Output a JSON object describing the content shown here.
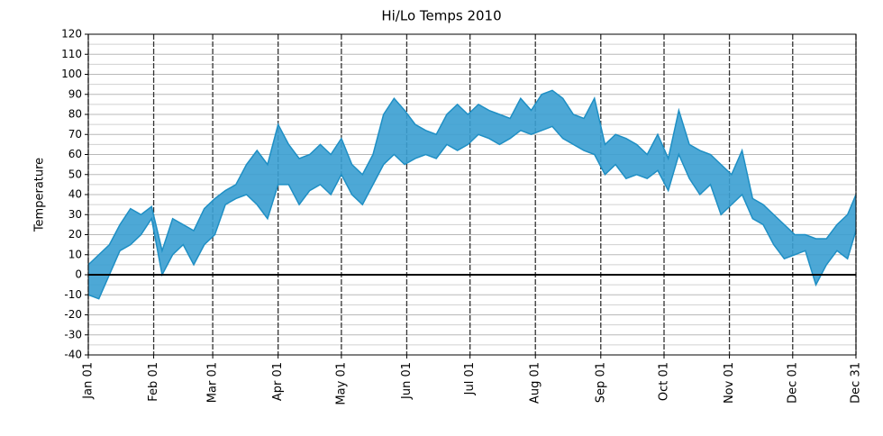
{
  "chart_data": {
    "type": "fill_between",
    "title": "Hi/Lo Temps 2010",
    "ylabel": "Temperature",
    "x": [
      "Jan 01",
      "Jan 06",
      "Jan 11",
      "Jan 16",
      "Jan 21",
      "Jan 26",
      "Jan 31",
      "Feb 05",
      "Feb 10",
      "Feb 15",
      "Feb 20",
      "Feb 25",
      "Mar 02",
      "Mar 07",
      "Mar 12",
      "Mar 17",
      "Mar 22",
      "Mar 27",
      "Apr 01",
      "Apr 06",
      "Apr 11",
      "Apr 16",
      "Apr 21",
      "Apr 26",
      "May 01",
      "May 06",
      "May 11",
      "May 16",
      "May 21",
      "May 26",
      "May 31",
      "Jun 05",
      "Jun 10",
      "Jun 15",
      "Jun 20",
      "Jun 25",
      "Jun 30",
      "Jul 05",
      "Jul 10",
      "Jul 15",
      "Jul 20",
      "Jul 25",
      "Jul 30",
      "Aug 04",
      "Aug 09",
      "Aug 14",
      "Aug 19",
      "Aug 24",
      "Aug 29",
      "Sep 03",
      "Sep 08",
      "Sep 13",
      "Sep 18",
      "Sep 23",
      "Sep 28",
      "Oct 03",
      "Oct 08",
      "Oct 13",
      "Oct 18",
      "Oct 23",
      "Oct 28",
      "Nov 02",
      "Nov 07",
      "Nov 12",
      "Nov 17",
      "Nov 22",
      "Nov 27",
      "Dec 02",
      "Dec 07",
      "Dec 12",
      "Dec 17",
      "Dec 22",
      "Dec 27",
      "Dec 31"
    ],
    "high": [
      5,
      10,
      15,
      25,
      33,
      30,
      34,
      12,
      28,
      25,
      22,
      33,
      38,
      42,
      45,
      55,
      62,
      55,
      75,
      65,
      58,
      60,
      65,
      60,
      68,
      55,
      50,
      60,
      80,
      88,
      82,
      75,
      72,
      70,
      80,
      85,
      80,
      85,
      82,
      80,
      78,
      88,
      82,
      90,
      92,
      88,
      80,
      78,
      88,
      65,
      70,
      68,
      65,
      60,
      70,
      58,
      82,
      65,
      62,
      60,
      55,
      50,
      62,
      38,
      35,
      30,
      25,
      20,
      20,
      18,
      18,
      25,
      30,
      40
    ],
    "low": [
      -10,
      -12,
      0,
      12,
      15,
      20,
      28,
      0,
      10,
      15,
      5,
      15,
      20,
      35,
      38,
      40,
      35,
      28,
      45,
      45,
      35,
      42,
      45,
      40,
      50,
      40,
      35,
      45,
      55,
      60,
      55,
      58,
      60,
      58,
      65,
      62,
      65,
      70,
      68,
      65,
      68,
      72,
      70,
      72,
      74,
      68,
      65,
      62,
      60,
      50,
      55,
      48,
      50,
      48,
      52,
      42,
      60,
      48,
      40,
      45,
      30,
      35,
      40,
      28,
      25,
      15,
      8,
      10,
      12,
      -5,
      5,
      12,
      8,
      22
    ],
    "color": "#1f8fc4",
    "fill": "#3a9fd2",
    "xlim": [
      "Jan 01",
      "Dec 31"
    ],
    "xticks": [
      "Jan 01",
      "Feb 01",
      "Mar 01",
      "Apr 01",
      "May 01",
      "Jun 01",
      "Jul 01",
      "Aug 01",
      "Sep 01",
      "Oct 01",
      "Nov 01",
      "Dec 01",
      "Dec 31"
    ],
    "ylim": [
      -40,
      120
    ],
    "yticks": [
      -40,
      -30,
      -20,
      -10,
      0,
      10,
      20,
      30,
      40,
      50,
      60,
      70,
      80,
      90,
      100,
      110,
      120
    ],
    "yminorticks": [
      -35,
      -25,
      -15,
      -5,
      5,
      15,
      25,
      35,
      45,
      55,
      65,
      75,
      85,
      95,
      105,
      115
    ],
    "hline": 0,
    "grid": true
  }
}
